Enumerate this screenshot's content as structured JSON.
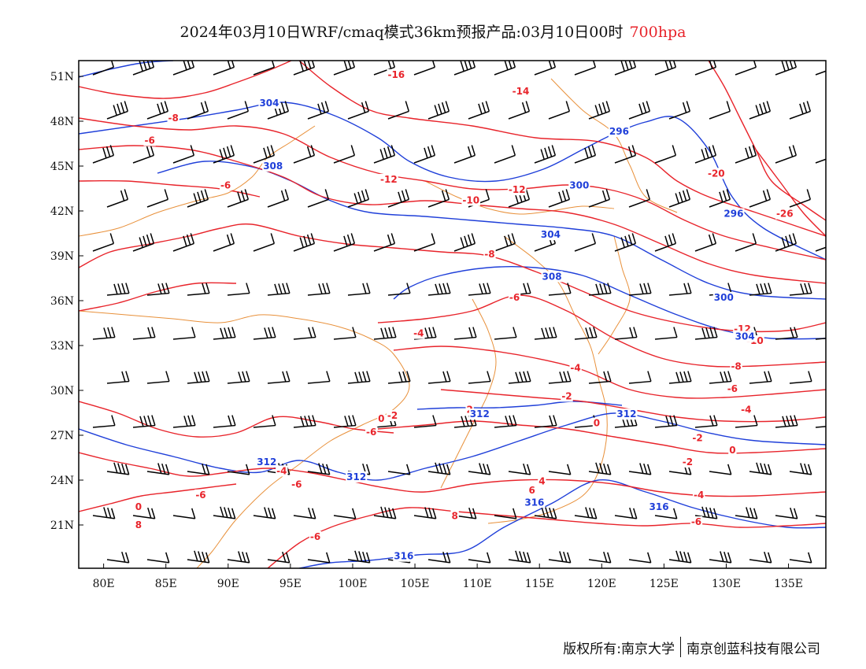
{
  "title": {
    "text": "2024年03月10日WRF/cmaq模式36km预报产品:03月10日00时",
    "level": "700hpa"
  },
  "chart_data": {
    "type": "contour-map",
    "xaxis": {
      "tick_labels": [
        "80E",
        "85E",
        "90E",
        "95E",
        "100E",
        "105E",
        "110E",
        "115E",
        "120E",
        "125E",
        "130E",
        "135E"
      ],
      "values": [
        80,
        85,
        90,
        95,
        100,
        105,
        110,
        115,
        120,
        125,
        130,
        135
      ],
      "range": [
        78,
        138
      ]
    },
    "yaxis": {
      "tick_labels": [
        "21N",
        "24N",
        "27N",
        "30N",
        "33N",
        "36N",
        "39N",
        "42N",
        "45N",
        "48N",
        "51N"
      ],
      "values": [
        21,
        24,
        27,
        30,
        33,
        36,
        39,
        42,
        45,
        48,
        51
      ],
      "range": [
        18,
        52
      ]
    },
    "temperature_contours_color": "#e8242b",
    "height_contours_color": "#1f3fd9",
    "boundary_color": "#e8903a",
    "temperature_labels": [
      {
        "text": "-16",
        "lon": 103.5,
        "lat": 50.9
      },
      {
        "text": "-14",
        "lon": 113.5,
        "lat": 49.8
      },
      {
        "text": "-8",
        "lon": 85.6,
        "lat": 48.0
      },
      {
        "text": "-6",
        "lon": 83.7,
        "lat": 46.5
      },
      {
        "text": "-6",
        "lon": 89.8,
        "lat": 43.5
      },
      {
        "text": "-12",
        "lon": 102.9,
        "lat": 43.9
      },
      {
        "text": "-12",
        "lon": 113.2,
        "lat": 43.2
      },
      {
        "text": "-10",
        "lon": 109.5,
        "lat": 42.5
      },
      {
        "text": "-20",
        "lon": 129.2,
        "lat": 44.3
      },
      {
        "text": "-26",
        "lon": 134.7,
        "lat": 41.6
      },
      {
        "text": "-8",
        "lon": 111.0,
        "lat": 38.9
      },
      {
        "text": "-6",
        "lon": 113.0,
        "lat": 36.0
      },
      {
        "text": "-4",
        "lon": 105.3,
        "lat": 33.6
      },
      {
        "text": "-4",
        "lon": 117.9,
        "lat": 31.3
      },
      {
        "text": "-2",
        "lon": 117.2,
        "lat": 29.4
      },
      {
        "text": "-8",
        "lon": 130.8,
        "lat": 31.4
      },
      {
        "text": "-12",
        "lon": 131.3,
        "lat": 33.9
      },
      {
        "text": "-10",
        "lon": 132.3,
        "lat": 33.1
      },
      {
        "text": "-6",
        "lon": 130.5,
        "lat": 29.9
      },
      {
        "text": "-4",
        "lon": 131.6,
        "lat": 28.5
      },
      {
        "text": "-2",
        "lon": 127.7,
        "lat": 26.6
      },
      {
        "text": "0",
        "lon": 130.5,
        "lat": 25.8
      },
      {
        "text": "-2",
        "lon": 126.9,
        "lat": 25.0
      },
      {
        "text": "-4",
        "lon": 127.8,
        "lat": 22.8
      },
      {
        "text": "-6",
        "lon": 127.6,
        "lat": 21.0
      },
      {
        "text": "0",
        "lon": 119.6,
        "lat": 27.6
      },
      {
        "text": "2",
        "lon": 109.4,
        "lat": 28.5
      },
      {
        "text": "-2",
        "lon": 103.2,
        "lat": 28.1
      },
      {
        "text": "0",
        "lon": 102.3,
        "lat": 27.9
      },
      {
        "text": "-6",
        "lon": 101.5,
        "lat": 27.0
      },
      {
        "text": "-4",
        "lon": 94.3,
        "lat": 24.4
      },
      {
        "text": "-6",
        "lon": 95.5,
        "lat": 23.5
      },
      {
        "text": "-6",
        "lon": 87.8,
        "lat": 22.8
      },
      {
        "text": "6",
        "lon": 114.4,
        "lat": 23.1
      },
      {
        "text": "4",
        "lon": 115.2,
        "lat": 23.7
      },
      {
        "text": "8",
        "lon": 108.2,
        "lat": 21.4
      },
      {
        "text": "-6",
        "lon": 97.0,
        "lat": 20.0
      },
      {
        "text": "8",
        "lon": 82.8,
        "lat": 20.8
      },
      {
        "text": "0",
        "lon": 82.8,
        "lat": 22.0
      }
    ],
    "height_labels": [
      {
        "text": "304",
        "lon": 93.3,
        "lat": 49.0
      },
      {
        "text": "308",
        "lon": 93.6,
        "lat": 44.8
      },
      {
        "text": "296",
        "lon": 121.4,
        "lat": 47.1
      },
      {
        "text": "300",
        "lon": 118.2,
        "lat": 43.5
      },
      {
        "text": "296",
        "lon": 130.6,
        "lat": 41.6
      },
      {
        "text": "304",
        "lon": 115.9,
        "lat": 40.2
      },
      {
        "text": "308",
        "lon": 116.0,
        "lat": 37.4
      },
      {
        "text": "300",
        "lon": 129.8,
        "lat": 36.0
      },
      {
        "text": "304",
        "lon": 131.5,
        "lat": 33.4
      },
      {
        "text": "312",
        "lon": 110.2,
        "lat": 28.2
      },
      {
        "text": "312",
        "lon": 122.0,
        "lat": 28.2
      },
      {
        "text": "312",
        "lon": 93.1,
        "lat": 25.0
      },
      {
        "text": "312",
        "lon": 100.3,
        "lat": 24.0
      },
      {
        "text": "316",
        "lon": 114.6,
        "lat": 22.3
      },
      {
        "text": "316",
        "lon": 124.6,
        "lat": 22.0
      },
      {
        "text": "316",
        "lon": 104.1,
        "lat": 18.7
      }
    ]
  },
  "footer": {
    "left": "版权所有:南京大学",
    "right": "南京创蓝科技有限公司"
  }
}
